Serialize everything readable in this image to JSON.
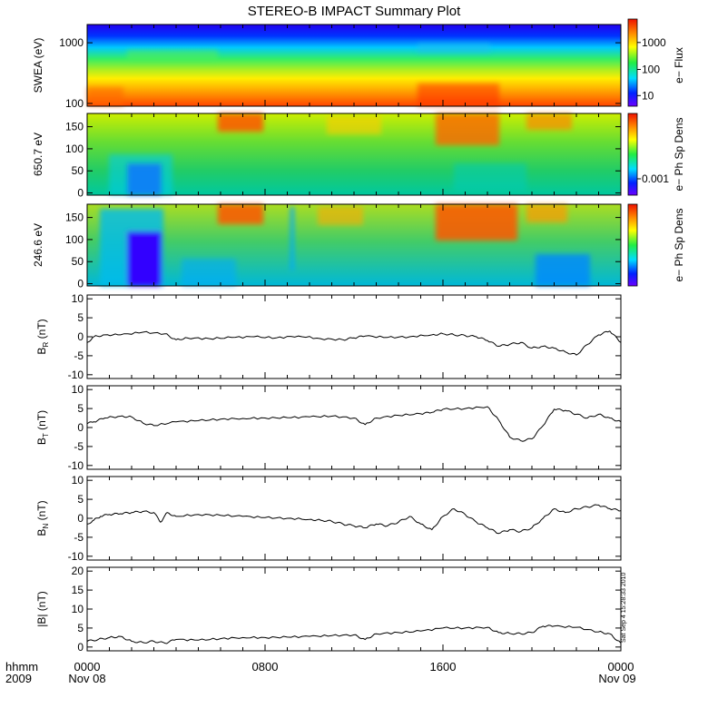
{
  "chart_data": {
    "title": "STEREO-B IMPACT Summary Plot",
    "type": "multi-panel",
    "x": {
      "start_hours": 0,
      "end_hours": 24,
      "tick_labels": [
        "0000",
        "0800",
        "1600",
        "0000"
      ],
      "tick_hours": [
        0,
        8,
        16,
        24
      ],
      "date_labels": [
        "Nov 08",
        "Nov 09"
      ],
      "date_label_hours": [
        0,
        24
      ],
      "corner_labels": [
        "hhmm",
        "2009"
      ]
    },
    "timestamp": "Sat Sep  4 15:28:33 2010",
    "panels": [
      {
        "id": "swea",
        "kind": "spectrogram",
        "ylabel": "SWEA (eV)",
        "scale": "log",
        "ylim": [
          90,
          2000
        ],
        "yticks": [
          {
            "v": 100,
            "label": "100"
          },
          {
            "v": 1000,
            "label": "1000"
          }
        ],
        "colorbar": {
          "label": "e− Flux",
          "ticks": [
            {
              "f": 0.13,
              "label": "10"
            },
            {
              "f": 0.45,
              "label": "100"
            },
            {
              "f": 0.78,
              "label": "1000"
            }
          ]
        },
        "description": "electron flux vs energy, high flux at low energy"
      },
      {
        "id": "pad650",
        "kind": "spectrogram",
        "ylabel": "650.7 eV",
        "scale": "linear",
        "ylim": [
          -5,
          180
        ],
        "yticks": [
          {
            "v": 0,
            "label": "0"
          },
          {
            "v": 50,
            "label": "50"
          },
          {
            "v": 100,
            "label": "100"
          },
          {
            "v": 150,
            "label": "150"
          }
        ],
        "colorbar": {
          "label": "e− Ph Sp Dens",
          "ticks": [
            {
              "f": 0.2,
              "label": "0.001"
            }
          ]
        }
      },
      {
        "id": "pad246",
        "kind": "spectrogram",
        "ylabel": "246.6 eV",
        "scale": "linear",
        "ylim": [
          -5,
          180
        ],
        "yticks": [
          {
            "v": 0,
            "label": "0"
          },
          {
            "v": 50,
            "label": "50"
          },
          {
            "v": 100,
            "label": "100"
          },
          {
            "v": 150,
            "label": "150"
          }
        ],
        "colorbar": {
          "label": "e− Ph Sp Dens",
          "ticks": []
        }
      },
      {
        "id": "br",
        "kind": "line",
        "ylabel_base": "B",
        "ylabel_sub": "R",
        "ylabel_unit": " (nT)",
        "ylim": [
          -11,
          11
        ],
        "yticks": [
          {
            "v": -10,
            "label": "-10"
          },
          {
            "v": -5,
            "label": "-5"
          },
          {
            "v": 0,
            "label": "0"
          },
          {
            "v": 5,
            "label": "5"
          },
          {
            "v": 10,
            "label": "10"
          }
        ],
        "x": [
          0,
          0.3,
          0.8,
          1.5,
          2.5,
          3.5,
          4.0,
          4.5,
          5.5,
          6.5,
          7.5,
          8.5,
          9.5,
          10.5,
          11.5,
          12.0,
          12.5,
          13.5,
          14.5,
          15.5,
          16.0,
          16.5,
          17.0,
          17.5,
          18.0,
          18.5,
          19.0,
          19.5,
          20.0,
          20.5,
          21.0,
          21.5,
          22.0,
          22.5,
          23.0,
          23.5,
          24.0
        ],
        "y": [
          -1.5,
          0,
          0.5,
          0.5,
          1.2,
          0.8,
          -0.8,
          -0.3,
          -0.5,
          -0.2,
          0,
          -0.3,
          0.2,
          -0.5,
          -0.8,
          -0.3,
          0.2,
          -0.2,
          0,
          0.5,
          0.8,
          0.5,
          0.3,
          0,
          -1.0,
          -2.5,
          -2.0,
          -1.5,
          -3.0,
          -2.5,
          -3.0,
          -4.0,
          -4.8,
          -2.0,
          0.5,
          1.5,
          -1.5
        ]
      },
      {
        "id": "bt",
        "kind": "line",
        "ylabel_base": "B",
        "ylabel_sub": "T",
        "ylabel_unit": " (nT)",
        "ylim": [
          -11,
          11
        ],
        "yticks": [
          {
            "v": -10,
            "label": "-10"
          },
          {
            "v": -5,
            "label": "-5"
          },
          {
            "v": 0,
            "label": "0"
          },
          {
            "v": 5,
            "label": "5"
          },
          {
            "v": 10,
            "label": "10"
          }
        ],
        "x": [
          0,
          0.3,
          0.8,
          1.5,
          2.0,
          2.5,
          3.0,
          4.0,
          5.0,
          6.0,
          7.0,
          8.0,
          9.0,
          10.0,
          11.0,
          12.0,
          12.5,
          13.0,
          14.0,
          15.0,
          15.5,
          16.0,
          17.0,
          18.0,
          18.5,
          19.0,
          19.5,
          20.0,
          20.5,
          21.0,
          21.5,
          22.0,
          22.5,
          23.0,
          23.5,
          24.0
        ],
        "y": [
          1.0,
          1.5,
          2.5,
          3.0,
          2.8,
          1.2,
          0.5,
          1.5,
          1.8,
          2.2,
          2.4,
          2.5,
          2.6,
          2.8,
          3.0,
          2.5,
          0.8,
          2.5,
          3.2,
          3.6,
          4.0,
          4.8,
          5.0,
          5.5,
          2.0,
          -2.5,
          -3.5,
          -3.0,
          0.5,
          4.8,
          4.5,
          3.5,
          2.5,
          3.5,
          2.5,
          1.5
        ]
      },
      {
        "id": "bn",
        "kind": "line",
        "ylabel_base": "B",
        "ylabel_sub": "N",
        "ylabel_unit": " (nT)",
        "ylim": [
          -11,
          11
        ],
        "yticks": [
          {
            "v": -10,
            "label": "-10"
          },
          {
            "v": -5,
            "label": "-5"
          },
          {
            "v": 0,
            "label": "0"
          },
          {
            "v": 5,
            "label": "5"
          },
          {
            "v": 10,
            "label": "10"
          }
        ],
        "x": [
          0,
          0.3,
          0.6,
          1.0,
          1.5,
          2.0,
          2.5,
          3.0,
          3.3,
          3.6,
          4.0,
          5.0,
          6.0,
          7.0,
          8.0,
          9.0,
          10.0,
          10.5,
          11.0,
          11.5,
          12.0,
          12.5,
          13.0,
          13.5,
          14.0,
          14.5,
          15.0,
          15.5,
          16.0,
          16.5,
          17.0,
          17.5,
          18.0,
          18.5,
          19.0,
          19.5,
          20.0,
          20.5,
          21.0,
          21.5,
          22.0,
          22.5,
          23.0,
          23.5,
          24.0
        ],
        "y": [
          -1.5,
          -0.5,
          0.5,
          1.0,
          1.2,
          1.5,
          1.8,
          1.5,
          -1.0,
          1.5,
          0.5,
          1.0,
          0.8,
          0.5,
          0.2,
          0,
          -0.3,
          -0.5,
          -0.8,
          -1.5,
          -2.0,
          -2.5,
          -1.5,
          -2.0,
          -1.0,
          0.5,
          -1.5,
          -3.0,
          0.5,
          2.5,
          1.0,
          -1.0,
          -2.5,
          -4.0,
          -3.0,
          -3.5,
          -2.5,
          0,
          2.5,
          1.5,
          2.5,
          3.0,
          3.5,
          2.5,
          2.0
        ]
      },
      {
        "id": "bmag",
        "kind": "line",
        "ylabel_base": "|B|",
        "ylabel_sub": "",
        "ylabel_unit": " (nT)",
        "ylim": [
          -1,
          21
        ],
        "yticks": [
          {
            "v": 0,
            "label": "0"
          },
          {
            "v": 5,
            "label": "5"
          },
          {
            "v": 10,
            "label": "10"
          },
          {
            "v": 15,
            "label": "15"
          },
          {
            "v": 20,
            "label": "20"
          }
        ],
        "x": [
          0,
          0.5,
          1.0,
          1.5,
          2.0,
          2.5,
          3.0,
          3.5,
          4.0,
          5.0,
          6.0,
          7.0,
          8.0,
          9.0,
          10.0,
          11.0,
          12.0,
          12.5,
          13.0,
          14.0,
          15.0,
          16.0,
          17.0,
          18.0,
          18.5,
          19.0,
          19.5,
          20.0,
          20.5,
          21.0,
          22.0,
          23.0,
          23.5,
          24.0
        ],
        "y": [
          1.5,
          2.0,
          2.5,
          2.8,
          1.5,
          1.2,
          1.5,
          1.0,
          2.0,
          1.8,
          2.2,
          2.5,
          2.5,
          2.6,
          2.8,
          3.0,
          3.2,
          2.0,
          3.5,
          3.8,
          4.2,
          5.0,
          5.0,
          5.2,
          3.8,
          3.6,
          3.5,
          3.8,
          5.5,
          5.5,
          5.2,
          4.0,
          3.5,
          1.0
        ]
      }
    ]
  }
}
